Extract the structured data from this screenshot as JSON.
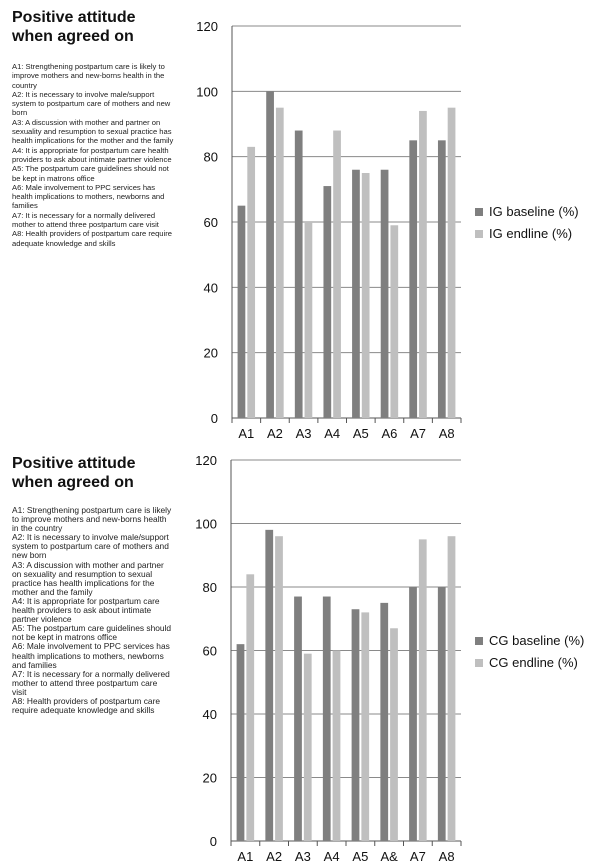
{
  "panels": [
    {
      "title": "Positive attitude when agreed on",
      "definitions": [
        "A1: Strengthening postpartum care is likely to improve mothers and new-borns health in the country",
        "A2: It is necessary to involve male/support system to postpartum care of mothers and new born",
        "A3: A discussion with mother and partner on sexuality and resumption to sexual practice has health implications for the mother and the family",
        "A4: It is appropriate for postpartum care health providers to ask about intimate partner violence",
        "A5: The postpartum care guidelines should not be kept in matrons office",
        "A6:  Male involvement to PPC services has health implications to mothers, newborns and families",
        "A7: It is necessary for a normally delivered mother to attend three postpartum care visit",
        "A8: Health providers of postpartum care require adequate knowledge and skills"
      ]
    },
    {
      "title": "Positive attitude when agreed on",
      "definitions": [
        "A1: Strengthening postpartum care is likely to improve mothers and new-borns health in the country",
        "A2: It is necessary to involve male/support system to postpartum care of mothers and new born",
        "A3: A discussion with mother and partner on sexuality and resumption to sexual practice has health implications for the mother and the family",
        "A4: It is appropriate for postpartum care health providers to ask about intimate partner violence",
        "A5: The postpartum care guidelines should not be kept in matrons office",
        "A6:  Male involvement to PPC services has health implications to mothers, newborns and families",
        "A7: It is necessary for a normally delivered mother to attend three postpartum care visit",
        "A8: Health providers of postpartum care require adequate knowledge and skills"
      ]
    }
  ],
  "chart_data": [
    {
      "type": "bar",
      "categories": [
        "A1",
        "A2",
        "A3",
        "A4",
        "A5",
        "A6",
        "A7",
        "A8"
      ],
      "series": [
        {
          "name": "IG baseline (%)",
          "values": [
            65,
            100,
            88,
            71,
            76,
            76,
            85,
            85
          ],
          "color": "#7f7f7f"
        },
        {
          "name": "IG endline (%)",
          "values": [
            83,
            95,
            60,
            88,
            75,
            59,
            94,
            95
          ],
          "color": "#bfbfbf"
        }
      ],
      "yticks": [
        "0",
        "20",
        "40",
        "60",
        "80",
        "100",
        "120"
      ],
      "ylim": [
        0,
        120
      ],
      "grid": true,
      "legend": "right"
    },
    {
      "type": "bar",
      "categories": [
        "A1",
        "A2",
        "A3",
        "A4",
        "A5",
        "A&",
        "A7",
        "A8"
      ],
      "series": [
        {
          "name": "CG baseline (%)",
          "values": [
            62,
            98,
            77,
            77,
            73,
            75,
            80,
            80
          ],
          "color": "#7f7f7f"
        },
        {
          "name": "CG endline (%)",
          "values": [
            84,
            96,
            59,
            60,
            72,
            67,
            95,
            96
          ],
          "color": "#bfbfbf"
        }
      ],
      "yticks": [
        "0",
        "20",
        "40",
        "60",
        "80",
        "100",
        "120"
      ],
      "ylim": [
        0,
        120
      ],
      "grid": true,
      "legend": "right"
    }
  ]
}
